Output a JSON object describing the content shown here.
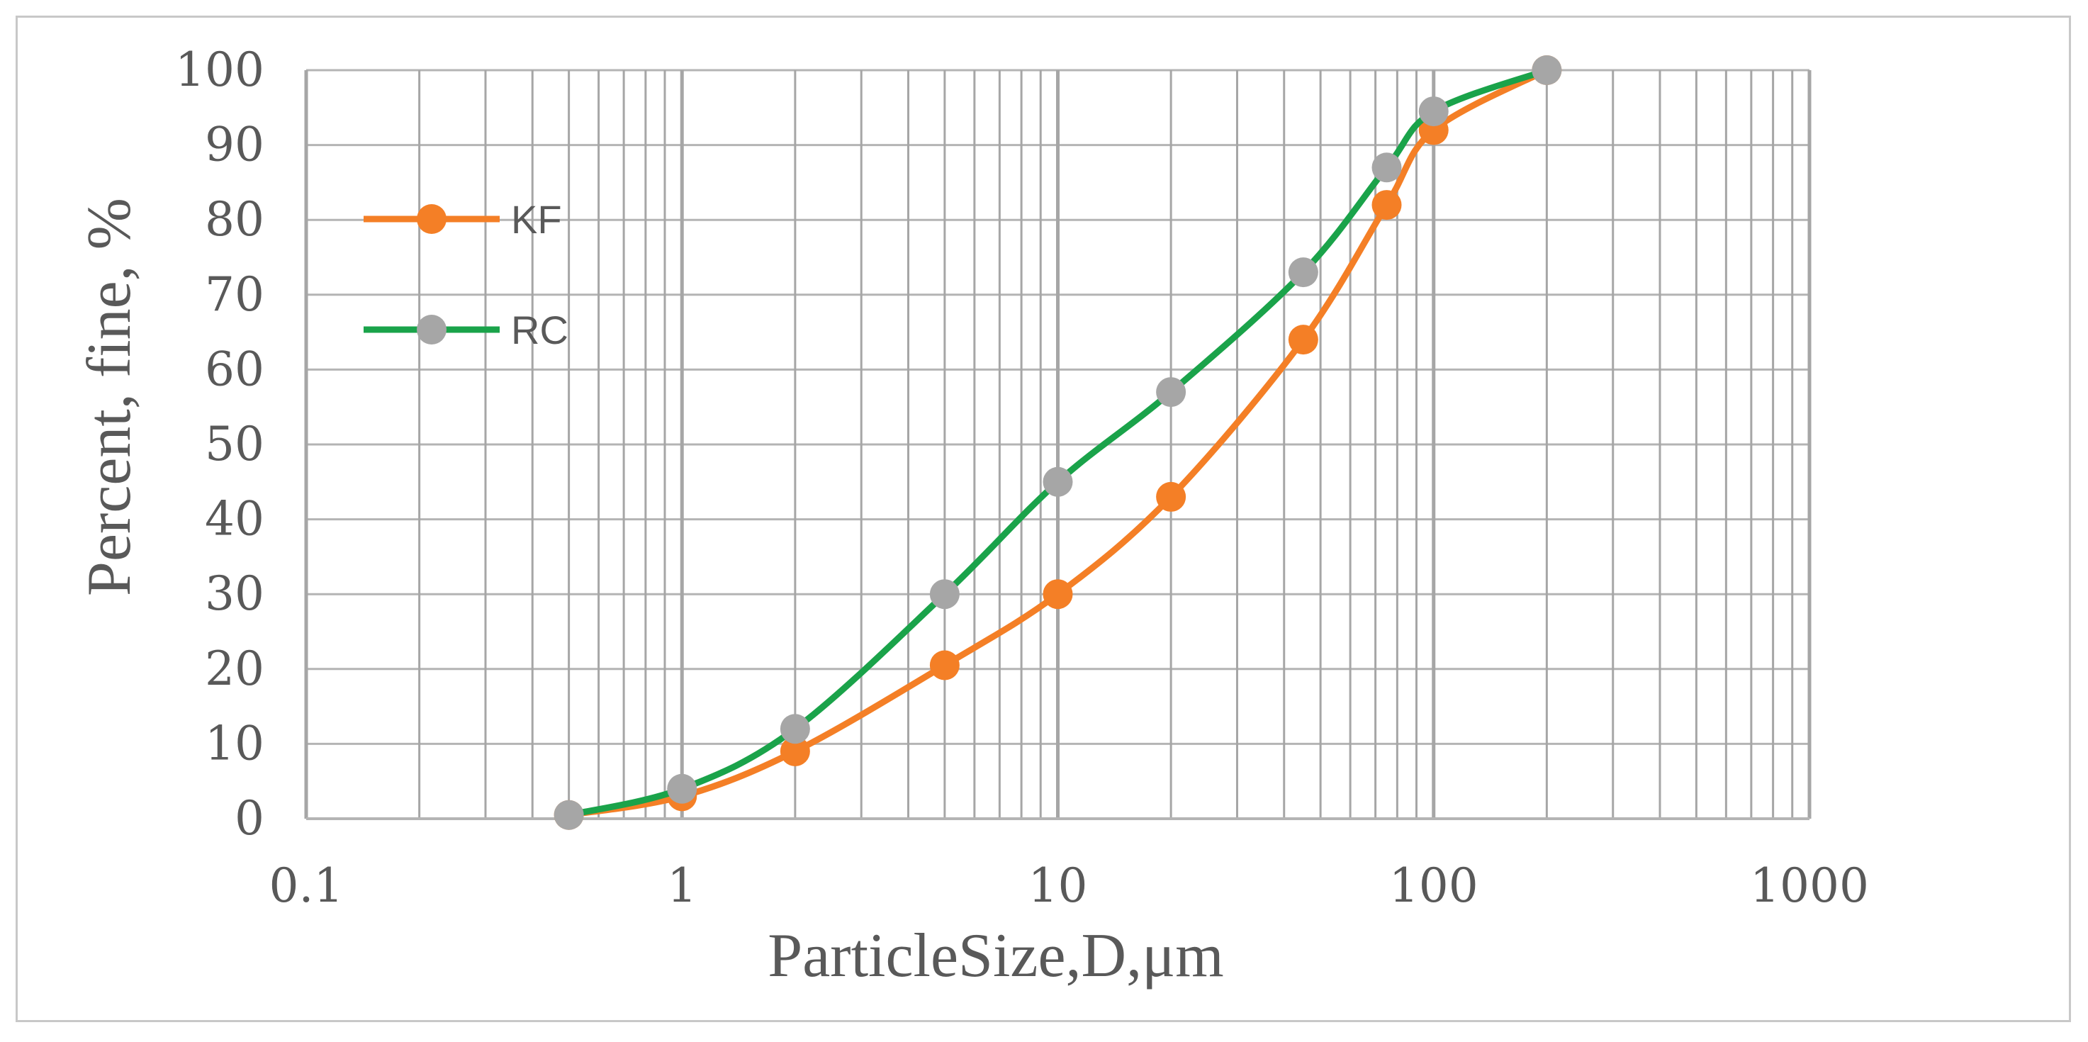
{
  "chart_data": {
    "type": "line",
    "xscale": "log",
    "xlim": [
      0.1,
      1000
    ],
    "ylim": [
      0,
      100
    ],
    "grid": true,
    "legend_position": "top-left",
    "xlabel": "ParticleSize,D,μm",
    "ylabel": "Percent, fine, %",
    "xticks": [
      "0.1",
      "1",
      "10",
      "100",
      "1000"
    ],
    "yticks": [
      "0",
      "10",
      "20",
      "30",
      "40",
      "50",
      "60",
      "70",
      "80",
      "90",
      "100"
    ],
    "series": [
      {
        "name": "KF",
        "color": "#f47f26",
        "points": [
          [
            0.5,
            0.5
          ],
          [
            1,
            3
          ],
          [
            2,
            9
          ],
          [
            5,
            20.5
          ],
          [
            10,
            30
          ],
          [
            20,
            43
          ],
          [
            45,
            64
          ],
          [
            75,
            82
          ],
          [
            100,
            92
          ],
          [
            200,
            100
          ]
        ]
      },
      {
        "name": "RC",
        "color": "#1aa34a",
        "marker_color": "#a6a6a6",
        "points": [
          [
            0.5,
            0.5
          ],
          [
            1,
            4
          ],
          [
            2,
            12
          ],
          [
            5,
            30
          ],
          [
            10,
            45
          ],
          [
            20,
            57
          ],
          [
            45,
            73
          ],
          [
            75,
            87
          ],
          [
            100,
            94.5
          ],
          [
            200,
            100
          ]
        ]
      }
    ]
  }
}
